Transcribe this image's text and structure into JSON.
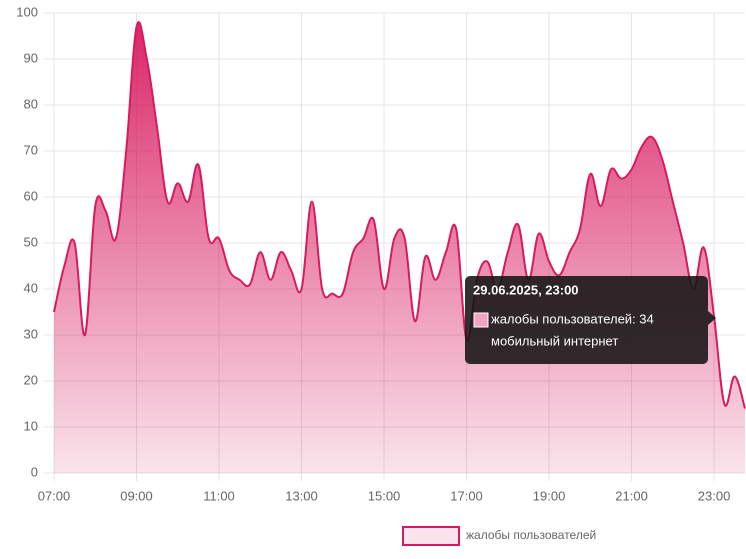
{
  "chart_data": {
    "type": "area",
    "x": [
      7,
      7.25,
      7.5,
      7.75,
      8,
      8.25,
      8.5,
      8.75,
      9,
      9.25,
      9.5,
      9.75,
      10,
      10.25,
      10.5,
      10.75,
      11,
      11.25,
      11.5,
      11.75,
      12,
      12.25,
      12.5,
      12.75,
      13,
      13.25,
      13.5,
      13.75,
      14,
      14.25,
      14.5,
      14.75,
      15,
      15.25,
      15.5,
      15.75,
      16,
      16.25,
      16.5,
      16.75,
      17,
      17.25,
      17.5,
      17.75,
      18,
      18.25,
      18.5,
      18.75,
      19,
      19.25,
      19.5,
      19.75,
      20,
      20.25,
      20.5,
      20.75,
      21,
      21.25,
      21.5,
      21.75,
      22,
      22.25,
      22.5,
      22.75,
      23,
      23.25,
      23.5,
      23.75
    ],
    "series": [
      {
        "name": "жалобы пользователей",
        "color": "#d81b60",
        "values": [
          35,
          45,
          50,
          30,
          58,
          57,
          51,
          70,
          97,
          90,
          75,
          59,
          63,
          59,
          67,
          51,
          51,
          44,
          42,
          41,
          48,
          42,
          48,
          44,
          40,
          59,
          40,
          39,
          39,
          48,
          51,
          55,
          40,
          51,
          51,
          33,
          47,
          42,
          48,
          53,
          29,
          42,
          46,
          40,
          48,
          54,
          42,
          52,
          46,
          43,
          48,
          53,
          65,
          58,
          66,
          64,
          66,
          71,
          73,
          68,
          59,
          50,
          40,
          49,
          34,
          15,
          21,
          14
        ]
      }
    ],
    "xlim": [
      7,
      23.75
    ],
    "xticks": [
      {
        "value": 7,
        "label": "07:00"
      },
      {
        "value": 9,
        "label": "09:00"
      },
      {
        "value": 11,
        "label": "11:00"
      },
      {
        "value": 13,
        "label": "13:00"
      },
      {
        "value": 15,
        "label": "15:00"
      },
      {
        "value": 17,
        "label": "17:00"
      },
      {
        "value": 19,
        "label": "19:00"
      },
      {
        "value": 21,
        "label": "21:00"
      },
      {
        "value": 23,
        "label": "23:00"
      }
    ],
    "ylim": [
      0,
      100
    ],
    "yticks": [
      0,
      10,
      20,
      30,
      40,
      50,
      60,
      70,
      80,
      90,
      100
    ],
    "grid": true,
    "legend": "bottom",
    "tooltip": {
      "title": "29.06.2025, 23:00",
      "lines": [
        "жалобы пользователей: 34",
        "мобильный интернет"
      ]
    }
  }
}
